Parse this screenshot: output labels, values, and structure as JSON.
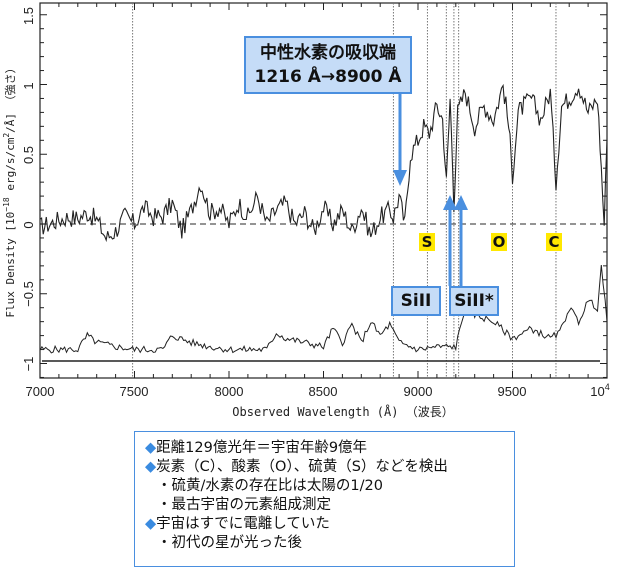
{
  "chart_data": {
    "type": "line",
    "title": "",
    "xlabel": "Observed Wavelength (Å) （波長）",
    "ylabel": "Flux Density [10^-18 erg/s/cm^2/Å] （強さ）",
    "xlim": [
      7000,
      10000
    ],
    "ylim": [
      -1.1,
      1.55
    ],
    "x_ticks": [
      7000,
      7500,
      8000,
      8500,
      9000,
      9500,
      10000
    ],
    "x_tick_labels": [
      "7000",
      "7500",
      "8000",
      "8500",
      "9000",
      "9500",
      "10^4"
    ],
    "y_ticks": [
      -1,
      -0.5,
      0,
      0.5,
      1,
      1.5
    ],
    "y_tick_labels": [
      "−1",
      "−0.5",
      "0",
      "0.5",
      "1",
      "1.5"
    ],
    "grid": false,
    "reference_lines": {
      "zero_dashed": 0,
      "lower_solid": -0.98,
      "vertical_dotted_x": [
        7490,
        8870,
        9050,
        9150,
        9190,
        9215,
        9500,
        9730
      ]
    },
    "series": [
      {
        "name": "spectrum",
        "x": [
          7000,
          7050,
          7100,
          7150,
          7200,
          7250,
          7300,
          7350,
          7400,
          7450,
          7500,
          7550,
          7600,
          7650,
          7700,
          7750,
          7800,
          7850,
          7900,
          7950,
          8000,
          8050,
          8100,
          8150,
          8200,
          8250,
          8300,
          8350,
          8400,
          8450,
          8500,
          8550,
          8600,
          8650,
          8700,
          8750,
          8800,
          8850,
          8870,
          8900,
          8930,
          8960,
          9000,
          9030,
          9060,
          9100,
          9130,
          9150,
          9170,
          9190,
          9210,
          9250,
          9300,
          9350,
          9400,
          9450,
          9480,
          9500,
          9530,
          9560,
          9600,
          9650,
          9700,
          9730,
          9760,
          9800,
          9850,
          9900,
          9950,
          9970,
          9985,
          10000
        ],
        "y": [
          -0.02,
          0.0,
          0.03,
          0.05,
          0.04,
          0.08,
          0.03,
          -0.1,
          -0.05,
          0.06,
          0.0,
          0.12,
          0.05,
          0.06,
          0.15,
          -0.05,
          0.1,
          0.3,
          0.08,
          0.12,
          0.0,
          0.15,
          0.05,
          0.2,
          0.0,
          0.1,
          0.15,
          0.0,
          0.08,
          -0.05,
          0.12,
          0.0,
          0.1,
          -0.05,
          0.12,
          -0.08,
          0.05,
          0.1,
          0.05,
          0.2,
          0.0,
          0.5,
          0.6,
          0.7,
          0.65,
          0.85,
          0.75,
          0.3,
          0.9,
          0.15,
          0.8,
          0.95,
          0.7,
          0.85,
          0.75,
          1.0,
          0.7,
          0.35,
          0.8,
          0.85,
          0.9,
          0.75,
          0.95,
          0.3,
          0.85,
          0.9,
          1.0,
          0.8,
          0.9,
          0.4,
          0.0,
          0.6
        ]
      },
      {
        "name": "error / sky spectrum",
        "x": [
          7000,
          7100,
          7200,
          7250,
          7300,
          7400,
          7500,
          7600,
          7650,
          7700,
          7800,
          7900,
          8000,
          8100,
          8200,
          8250,
          8300,
          8400,
          8500,
          8550,
          8600,
          8650,
          8700,
          8750,
          8800,
          8850,
          8900,
          9000,
          9100,
          9150,
          9200,
          9250,
          9300,
          9400,
          9500,
          9600,
          9700,
          9750,
          9800,
          9850,
          9900,
          9950,
          9970,
          10000
        ],
        "y": [
          -0.9,
          -0.9,
          -0.9,
          -0.8,
          -0.85,
          -0.88,
          -0.9,
          -0.9,
          -0.9,
          -0.8,
          -0.85,
          -0.88,
          -0.9,
          -0.9,
          -0.9,
          -0.78,
          -0.82,
          -0.85,
          -0.88,
          -0.75,
          -0.85,
          -0.72,
          -0.85,
          -0.7,
          -0.8,
          -0.72,
          -0.85,
          -0.9,
          -0.88,
          -0.88,
          -0.88,
          -0.6,
          -0.65,
          -0.7,
          -0.82,
          -0.75,
          -0.82,
          -0.78,
          -0.6,
          -0.7,
          -0.55,
          -0.6,
          -0.3,
          -0.7
        ]
      }
    ],
    "annotations": [
      {
        "text": "中性水素の吸収端\n1216 Å→8900 Å",
        "arrow_to_x": 8900,
        "arrow_to_y": 0.3
      },
      {
        "text": "SiII",
        "arrow_to_x": 9190
      },
      {
        "text": "SiII*",
        "arrow_to_x": 9220
      },
      {
        "text": "S",
        "x": 9040
      },
      {
        "text": "O",
        "x": 9480
      },
      {
        "text": "C",
        "x": 9730
      }
    ]
  },
  "axis": {
    "ylabel": "Flux Density [10",
    "ylabel_exp": "−18",
    "ylabel_rest": " erg/s/cm",
    "ylabel_exp2": "2",
    "ylabel_end": "/Å] （強さ）",
    "xlabel": "Observed Wavelength (Å) （波長）",
    "x_tick_labels": [
      "7000",
      "7500",
      "8000",
      "8500",
      "9000",
      "9500",
      "10"
    ],
    "x_last_exp": "4",
    "y_tick_labels": [
      "1.5",
      "1",
      "0.5",
      "0",
      "−0.5",
      "−1"
    ]
  },
  "callouts": {
    "hi_edge_line1": "中性水素の吸収端",
    "hi_edge_line2": "1216 Å→8900 Å",
    "sill": "SiII",
    "sill_star": "SiII*"
  },
  "elements": {
    "S": "S",
    "O": "O",
    "C": "C"
  },
  "info": {
    "colors": {
      "diamond": "#3a8be0",
      "border": "#4a8fdf"
    },
    "lines": [
      {
        "bullet": "◆",
        "text": "距離129億光年＝宇宙年齢9億年"
      },
      {
        "bullet": "◆",
        "text": "炭素（C）、酸素（O）、硫黄（S）などを検出"
      },
      {
        "bullet": "・",
        "text": "硫黄/水素の存在比は太陽の1/20"
      },
      {
        "bullet": "・",
        "text": "最古宇宙の元素組成測定"
      },
      {
        "bullet": "◆",
        "text": "宇宙はすでに電離していた"
      },
      {
        "bullet": "・",
        "text": "初代の星が光った後"
      }
    ]
  }
}
